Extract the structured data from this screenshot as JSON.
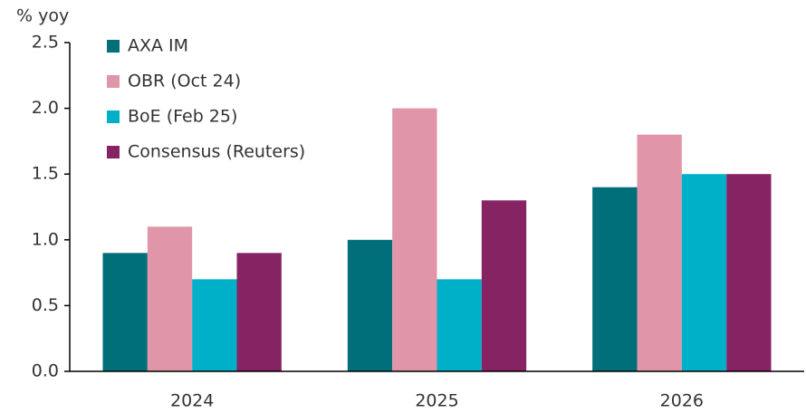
{
  "chart_data": {
    "type": "bar",
    "y_label": "% yoy",
    "categories": [
      "2024",
      "2025",
      "2026"
    ],
    "series": [
      {
        "name": "AXA IM",
        "color": "#006f7a",
        "values": [
          0.9,
          1.0,
          1.4
        ]
      },
      {
        "name": "OBR (Oct 24)",
        "color": "#e096a8",
        "values": [
          1.1,
          2.0,
          1.8
        ]
      },
      {
        "name": "BoE (Feb 25)",
        "color": "#00afc8",
        "values": [
          0.7,
          0.7,
          1.5
        ]
      },
      {
        "name": "Consensus (Reuters)",
        "color": "#862463",
        "values": [
          0.9,
          1.3,
          1.5
        ]
      }
    ],
    "ylim": [
      0,
      2.5
    ],
    "yticks": [
      {
        "value": 0,
        "label": "0.0"
      },
      0.5,
      {
        "value": 1,
        "label": "1.0"
      },
      1.5,
      {
        "value": 2,
        "label": "2.0"
      },
      2.5
    ],
    "grid": false,
    "legend": "top-left"
  }
}
